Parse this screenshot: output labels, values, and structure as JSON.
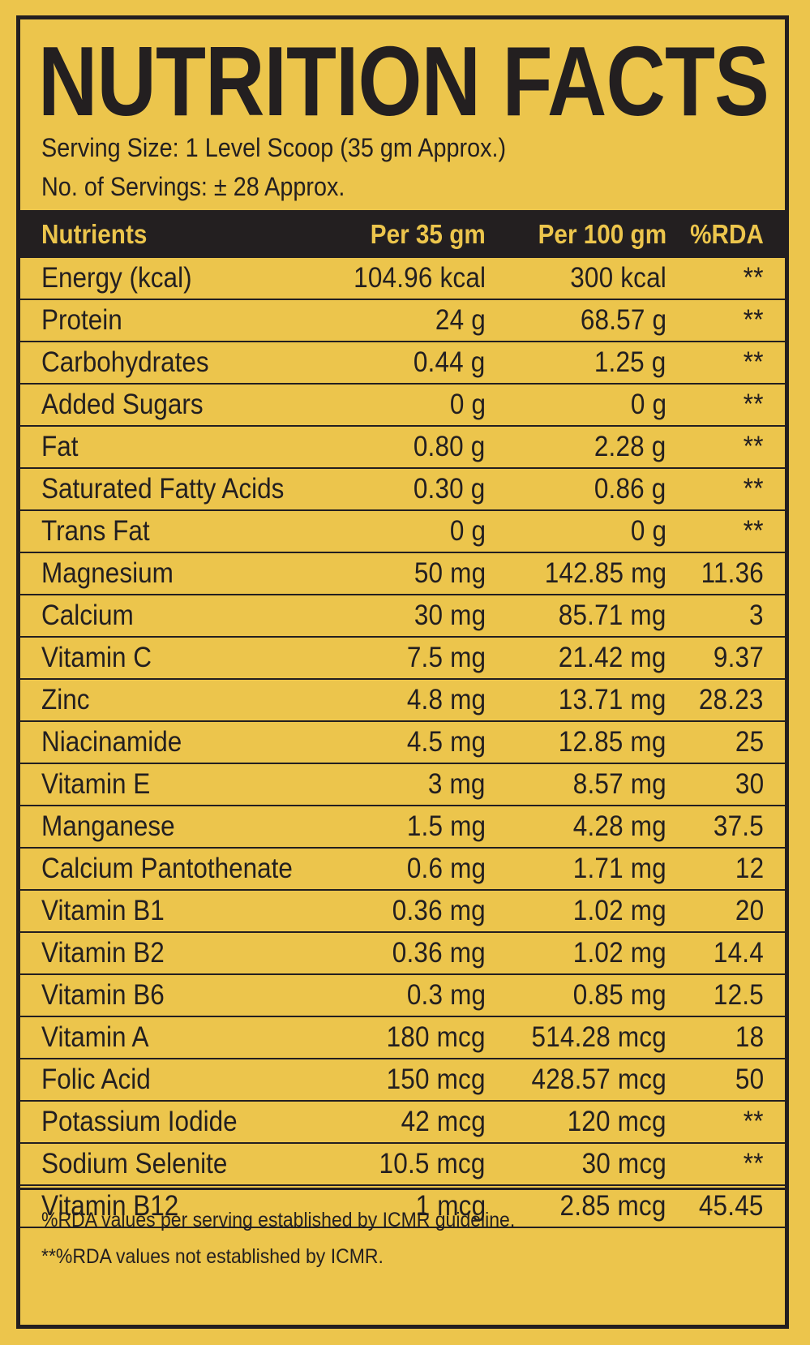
{
  "title": "NUTRITION FACTS",
  "serving_size": "Serving Size: 1 Level Scoop (35 gm Approx.)",
  "servings": "No. of Servings: ± 28 Approx.",
  "headers": {
    "nutrient": "Nutrients",
    "per35": "Per 35 gm",
    "per100": "Per 100 gm",
    "rda": "%RDA"
  },
  "rows": [
    {
      "nutrient": "Energy (kcal)",
      "per35": "104.96 kcal",
      "per100": "300 kcal",
      "rda": "**"
    },
    {
      "nutrient": "Protein",
      "per35": "24 g",
      "per100": "68.57 g",
      "rda": "**"
    },
    {
      "nutrient": "Carbohydrates",
      "per35": "0.44 g",
      "per100": "1.25 g",
      "rda": "**"
    },
    {
      "nutrient": "Added Sugars",
      "per35": "0 g",
      "per100": "0 g",
      "rda": "**"
    },
    {
      "nutrient": "Fat",
      "per35": "0.80 g",
      "per100": "2.28 g",
      "rda": "**"
    },
    {
      "nutrient": "Saturated Fatty Acids",
      "per35": "0.30 g",
      "per100": "0.86 g",
      "rda": "**"
    },
    {
      "nutrient": "Trans Fat",
      "per35": "0 g",
      "per100": "0 g",
      "rda": "**"
    },
    {
      "nutrient": "Magnesium",
      "per35": "50 mg",
      "per100": "142.85 mg",
      "rda": "11.36"
    },
    {
      "nutrient": "Calcium",
      "per35": "30 mg",
      "per100": "85.71 mg",
      "rda": "3"
    },
    {
      "nutrient": "Vitamin C",
      "per35": "7.5 mg",
      "per100": "21.42 mg",
      "rda": "9.37"
    },
    {
      "nutrient": "Zinc",
      "per35": "4.8 mg",
      "per100": "13.71 mg",
      "rda": "28.23"
    },
    {
      "nutrient": "Niacinamide",
      "per35": "4.5 mg",
      "per100": "12.85 mg",
      "rda": "25"
    },
    {
      "nutrient": "Vitamin E",
      "per35": "3 mg",
      "per100": "8.57 mg",
      "rda": "30"
    },
    {
      "nutrient": "Manganese",
      "per35": "1.5 mg",
      "per100": "4.28 mg",
      "rda": "37.5"
    },
    {
      "nutrient": "Calcium Pantothenate",
      "per35": "0.6 mg",
      "per100": "1.71 mg",
      "rda": "12"
    },
    {
      "nutrient": "Vitamin B1",
      "per35": "0.36 mg",
      "per100": "1.02 mg",
      "rda": "20"
    },
    {
      "nutrient": "Vitamin B2",
      "per35": "0.36 mg",
      "per100": "1.02 mg",
      "rda": "14.4"
    },
    {
      "nutrient": "Vitamin B6",
      "per35": "0.3 mg",
      "per100": "0.85 mg",
      "rda": "12.5"
    },
    {
      "nutrient": "Vitamin A",
      "per35": "180 mcg",
      "per100": "514.28 mcg",
      "rda": "18"
    },
    {
      "nutrient": "Folic Acid",
      "per35": "150 mcg",
      "per100": "428.57 mcg",
      "rda": "50"
    },
    {
      "nutrient": "Potassium Iodide",
      "per35": "42 mcg",
      "per100": "120 mcg",
      "rda": "**"
    },
    {
      "nutrient": "Sodium Selenite",
      "per35": "10.5 mcg",
      "per100": "30 mcg",
      "rda": "**"
    },
    {
      "nutrient": "Vitamin B12",
      "per35": "1 mcg",
      "per100": "2.85 mcg",
      "rda": "45.45"
    }
  ],
  "footnotes": [
    "%RDA values per serving established by ICMR guideline.",
    "**%RDA values not established by ICMR."
  ],
  "colors": {
    "background": "#ecc54c",
    "ink": "#231f20"
  }
}
